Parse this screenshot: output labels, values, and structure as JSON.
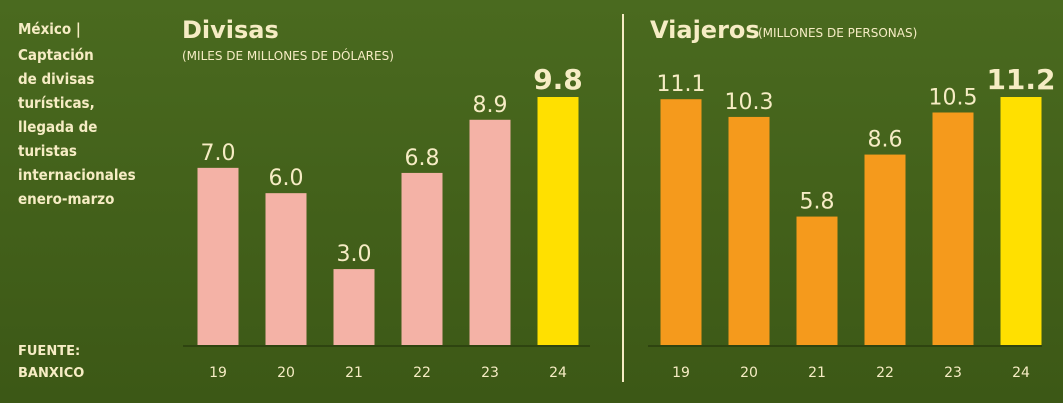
{
  "sidebar": {
    "heading": "México |",
    "lines": [
      "Captación",
      "de divisas",
      "turísticas,",
      "llegada de",
      "turistas",
      "internacionales",
      "enero-marzo"
    ],
    "source_label": "FUENTE:",
    "source": "BANXICO"
  },
  "chart_data": [
    {
      "type": "bar",
      "title": "Divisas",
      "subtitle": "(MILES DE MILLONES DE DÓLARES)",
      "categories": [
        "19",
        "20",
        "21",
        "22",
        "23",
        "24"
      ],
      "values": [
        7.0,
        6.0,
        3.0,
        6.8,
        8.9,
        9.8
      ],
      "value_labels": [
        "7.0",
        "6.0",
        "3.0",
        "6.8",
        "8.9",
        "9.8"
      ],
      "colors": [
        "#f4b2a6",
        "#f4b2a6",
        "#f4b2a6",
        "#f4b2a6",
        "#f4b2a6",
        "#ffe000"
      ]
    },
    {
      "type": "bar",
      "title": "Viajeros",
      "subtitle": "(MILLONES DE PERSONAS)",
      "categories": [
        "19",
        "20",
        "21",
        "22",
        "23",
        "24"
      ],
      "values": [
        11.1,
        10.3,
        5.8,
        8.6,
        10.5,
        11.2
      ],
      "value_labels": [
        "11.1",
        "10.3",
        "5.8",
        "8.6",
        "10.5",
        "11.2"
      ],
      "colors": [
        "#f59a1c",
        "#f59a1c",
        "#f59a1c",
        "#f59a1c",
        "#f59a1c",
        "#ffe000"
      ]
    }
  ]
}
